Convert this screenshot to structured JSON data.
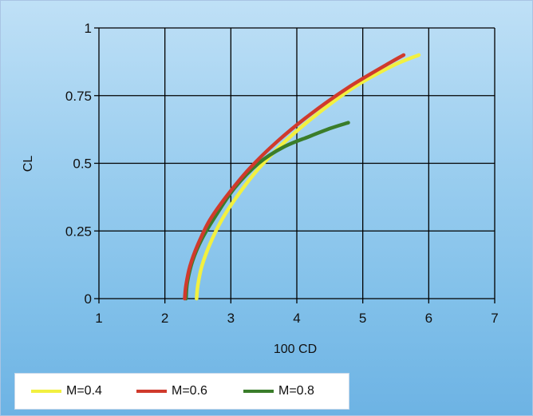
{
  "chart_data": {
    "type": "line",
    "title": "",
    "xlabel": "100 CD",
    "ylabel": "CL",
    "xlim": [
      1,
      7
    ],
    "ylim": [
      0,
      1
    ],
    "xticks": [
      "1",
      "2",
      "3",
      "4",
      "5",
      "6",
      "7"
    ],
    "yticks": [
      "0",
      "0.25",
      "0.5",
      "0.75",
      "1"
    ],
    "grid": true,
    "legend_position": "bottom-left",
    "series": [
      {
        "name": "M=0.4",
        "color": "#f2f040",
        "x": [
          2.48,
          2.5,
          2.56,
          2.68,
          2.86,
          3.1,
          3.42,
          3.82,
          4.3,
          4.86,
          5.45,
          5.85
        ],
        "y": [
          0.0,
          0.05,
          0.12,
          0.2,
          0.29,
          0.38,
          0.48,
          0.58,
          0.68,
          0.78,
          0.86,
          0.9
        ]
      },
      {
        "name": "M=0.6",
        "color": "#d03a2c",
        "x": [
          2.3,
          2.32,
          2.38,
          2.5,
          2.68,
          2.94,
          3.28,
          3.7,
          4.2,
          4.78,
          5.4,
          5.62
        ],
        "y": [
          0.0,
          0.05,
          0.12,
          0.2,
          0.29,
          0.38,
          0.48,
          0.58,
          0.68,
          0.78,
          0.87,
          0.9
        ]
      },
      {
        "name": "M=0.8",
        "color": "#3a7d2a",
        "x": [
          2.32,
          2.34,
          2.42,
          2.56,
          2.78,
          3.06,
          3.42,
          3.8,
          4.2,
          4.52,
          4.78
        ],
        "y": [
          0.0,
          0.06,
          0.14,
          0.22,
          0.31,
          0.41,
          0.5,
          0.56,
          0.6,
          0.63,
          0.65
        ]
      }
    ]
  }
}
